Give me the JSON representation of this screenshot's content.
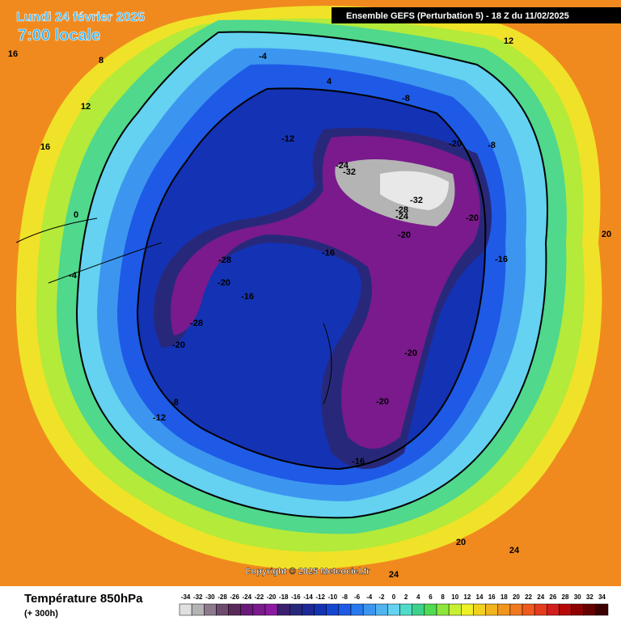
{
  "header": {
    "date": "Lundi 24 février 2025",
    "time": "7:00 locale",
    "model": "Ensemble GEFS  (Perturbation 5)  -  18 Z du 11/02/2025"
  },
  "copyright": "Copyright © 2025 Meteociel.fr",
  "legend": {
    "title": "Température 850hPa",
    "subtitle": "(+ 300h)",
    "ticks": [
      -34,
      -32,
      -30,
      -28,
      -26,
      -24,
      -22,
      -20,
      -18,
      -16,
      -14,
      -12,
      -10,
      -8,
      -6,
      -4,
      -2,
      0,
      2,
      4,
      6,
      8,
      10,
      12,
      14,
      16,
      18,
      20,
      22,
      24,
      26,
      28,
      30,
      32,
      34
    ],
    "colors": [
      "#e0e0e0",
      "#b4b4b4",
      "#8c7a8c",
      "#6e4a6e",
      "#5a285a",
      "#6a1a7a",
      "#7a1a8c",
      "#8c1aa0",
      "#3c1e6e",
      "#28287a",
      "#1e2896",
      "#1432b4",
      "#1446d2",
      "#1e5ae6",
      "#2878f0",
      "#3c96f0",
      "#50b4f0",
      "#64d2f0",
      "#50dcc8",
      "#3cd28c",
      "#50dc50",
      "#8ce63c",
      "#c8f032",
      "#f0f028",
      "#f0d21e",
      "#f0b41e",
      "#f0961e",
      "#f0781e",
      "#f05a1e",
      "#e63c1e",
      "#d21e1e",
      "#b40a0a",
      "#8c0000",
      "#640000",
      "#3c0000"
    ]
  },
  "map_labels": [
    "-32",
    "-24",
    "-32",
    "-28",
    "-24",
    "-20",
    "-20",
    "-20",
    "-16",
    "-28",
    "-20",
    "-16",
    "-28",
    "-20",
    "-20",
    "-20",
    "-16",
    "-12",
    "-12",
    "-8",
    "-8",
    "-4",
    "4",
    "12",
    "12",
    "16",
    "20",
    "24",
    "24",
    "20",
    "-8",
    "-16",
    "0",
    "-4",
    "8",
    "16"
  ]
}
